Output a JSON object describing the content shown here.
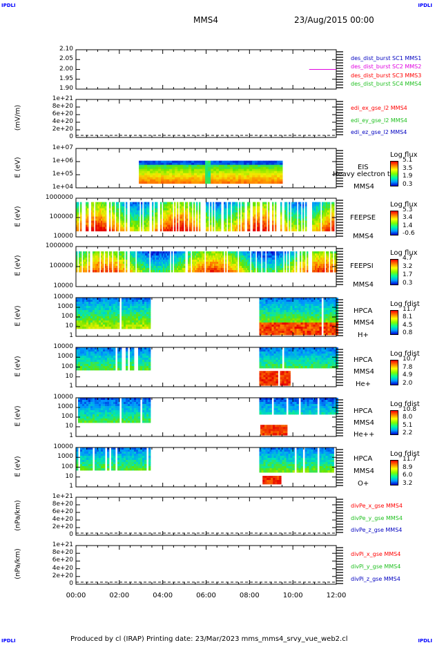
{
  "header": {
    "corner_label": "IPDLI",
    "spacecraft": "MMS4",
    "datetime": "23/Aug/2015 00:00"
  },
  "footer": {
    "text": "Produced by cl (IRAP)   Printing date: 23/Mar/2023   mms_mms4_srvy_vue_web2.cl"
  },
  "colors": {
    "red": "#ff0000",
    "magenta": "#e000e0",
    "green": "#20c020",
    "blue": "#0000c0"
  },
  "chart_data": {
    "type": "heatmap",
    "x_ticks": [
      "00:00",
      "02:00",
      "04:00",
      "06:00",
      "08:00",
      "10:00",
      "12:00"
    ],
    "xlim": [
      "00:00",
      "12:00"
    ],
    "panels": [
      {
        "id": "panel1",
        "ylabel": "",
        "yticks": [
          "2.10",
          "2.05",
          "2.00",
          "1.95",
          "1.90"
        ],
        "legend": [
          {
            "text": "des_dist_burst SC1 MMS1",
            "color": "#0000c0"
          },
          {
            "text": "des_dist_burst SC2 MMS2",
            "color": "#e000e0"
          },
          {
            "text": "des_dist_burst SC3 MMS3",
            "color": "#ff0000"
          },
          {
            "text": "des_dist_burst SC4 MMS4",
            "color": "#20c020"
          }
        ],
        "series": [
          {
            "name": "des_dist_burst SC2 MMS2",
            "x": [
              "10:45",
              "12:00"
            ],
            "y": [
              2.0,
              2.0
            ]
          }
        ]
      },
      {
        "id": "panel2",
        "ylabel": "(mV/m)",
        "yticks": [
          "1e+21",
          "8e+20",
          "6e+20",
          "4e+20",
          "2e+20",
          "0"
        ],
        "legend": [
          {
            "text": "edi_ex_gse_l2 MMS4",
            "color": "#ff0000"
          },
          {
            "text": "edi_ey_gse_l2 MMS4",
            "color": "#20c020"
          },
          {
            "text": "edi_ez_gse_l2 MMS4",
            "color": "#0000c0"
          }
        ]
      },
      {
        "id": "panel3",
        "ylabel": "E (eV)",
        "yticks": [
          "1e+07",
          "1e+06",
          "1e+05",
          "1e+04"
        ],
        "labels": [
          "EIS",
          "Heavy electron tof",
          "MMS4"
        ],
        "colorbar": {
          "title": "Log flux",
          "ticks": [
            "5.1",
            "3.5",
            "1.9",
            "0.3"
          ]
        }
      },
      {
        "id": "panel4",
        "ylabel": "E (eV)",
        "yticks": [
          "1000000",
          "100000",
          "10000"
        ],
        "labels": [
          "FEEPSE",
          "MMS4"
        ],
        "colorbar": {
          "title": "Log flux",
          "ticks": [
            "5.3",
            "3.4",
            "1.4",
            "-0.6"
          ]
        }
      },
      {
        "id": "panel5",
        "ylabel": "E (eV)",
        "yticks": [
          "1000000",
          "100000",
          "10000"
        ],
        "labels": [
          "FEEPSI",
          "MMS4"
        ],
        "colorbar": {
          "title": "Log flux",
          "ticks": [
            "4.7",
            "3.2",
            "1.7",
            "0.3"
          ]
        }
      },
      {
        "id": "panel6",
        "ylabel": "E (eV)",
        "yticks": [
          "10000",
          "1000",
          "100",
          "10",
          "1"
        ],
        "labels": [
          "HPCA",
          "MMS4",
          "H+"
        ],
        "colorbar": {
          "title": "Log fdist",
          "ticks": [
            "11.7",
            "8.1",
            "4.5",
            "0.8"
          ]
        }
      },
      {
        "id": "panel7",
        "ylabel": "E (eV)",
        "yticks": [
          "10000",
          "1000",
          "100",
          "10",
          "1"
        ],
        "labels": [
          "HPCA",
          "MMS4",
          "He+"
        ],
        "colorbar": {
          "title": "Log fdist",
          "ticks": [
            "10.7",
            "7.8",
            "4.9",
            "2.0"
          ]
        }
      },
      {
        "id": "panel8",
        "ylabel": "E (eV)",
        "yticks": [
          "10000",
          "1000",
          "100",
          "10",
          "1"
        ],
        "labels": [
          "HPCA",
          "MMS4",
          "He++"
        ],
        "colorbar": {
          "title": "Log fdist",
          "ticks": [
            "10.8",
            "8.0",
            "5.1",
            "2.2"
          ]
        }
      },
      {
        "id": "panel9",
        "ylabel": "E (eV)",
        "yticks": [
          "10000",
          "1000",
          "100",
          "10",
          "1"
        ],
        "labels": [
          "HPCA",
          "MMS4",
          "O+"
        ],
        "colorbar": {
          "title": "Log fdist",
          "ticks": [
            "11.7",
            "8.9",
            "6.0",
            "3.2"
          ]
        }
      },
      {
        "id": "panel10",
        "ylabel": "(nPa/km)",
        "yticks": [
          "1e+21",
          "8e+20",
          "6e+20",
          "4e+20",
          "2e+20",
          "0"
        ],
        "legend": [
          {
            "text": "divPe_x_gse MMS4",
            "color": "#ff0000"
          },
          {
            "text": "divPe_y_gse MMS4",
            "color": "#20c020"
          },
          {
            "text": "divPe_z_gse MMS4",
            "color": "#0000c0"
          }
        ]
      },
      {
        "id": "panel11",
        "ylabel": "(nPa/km)",
        "yticks": [
          "1e+21",
          "8e+20",
          "6e+20",
          "4e+20",
          "2e+20",
          "0"
        ],
        "legend": [
          {
            "text": "divPi_x_gse MMS4",
            "color": "#ff0000"
          },
          {
            "text": "divPi_y_gse MMS4",
            "color": "#20c020"
          },
          {
            "text": "divPi_z_gse MMS4",
            "color": "#0000c0"
          }
        ]
      }
    ]
  }
}
